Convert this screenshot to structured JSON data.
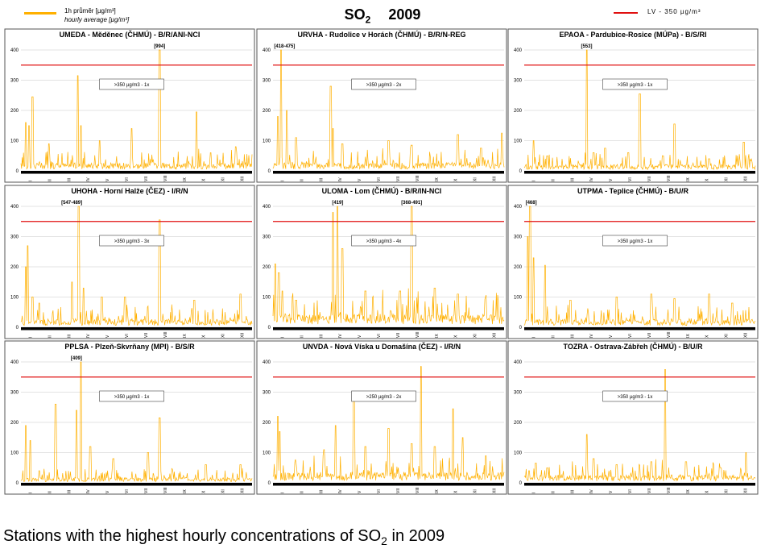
{
  "header": {
    "legend_hourly_cz": "1h průměr [µg/m³]",
    "legend_hourly_en": "hourly average [µg/m³]",
    "title_species": "SO",
    "title_subscript": "2",
    "title_year": "2009",
    "legend_limit": "LV  - 350 µg/m³",
    "hourly_color": "#ffb000",
    "limit_color": "#e01010"
  },
  "caption": {
    "text_before": "Stations with the highest hourly concentrations of SO",
    "subscript": "2",
    "text_after": " in 2009"
  },
  "chart_data": [
    {
      "type": "line",
      "title": "UMEDA - Měděnec (ČHMÚ) - B/R/ANI-NCI",
      "ylim": [
        0,
        400
      ],
      "yticks": [
        "0",
        "100",
        "200",
        "300",
        "400"
      ],
      "categories": [
        "I",
        "II",
        "III",
        "IV",
        "V",
        "VI",
        "VII",
        "VIII",
        "IX",
        "X",
        "XI",
        "XII"
      ],
      "limit_value": 350,
      "exceedance_note": ">350 µg/m3 - 1x",
      "peaks": [
        {
          "x": 0.02,
          "y": 160
        },
        {
          "x": 0.035,
          "y": 150
        },
        {
          "x": 0.05,
          "y": 245
        },
        {
          "x": 0.12,
          "y": 90
        },
        {
          "x": 0.245,
          "y": 315
        },
        {
          "x": 0.26,
          "y": 150
        },
        {
          "x": 0.34,
          "y": 100
        },
        {
          "x": 0.48,
          "y": 140
        },
        {
          "x": 0.6,
          "y": 400
        },
        {
          "x": 0.76,
          "y": 195
        },
        {
          "x": 0.82,
          "y": 60
        },
        {
          "x": 0.93,
          "y": 80
        }
      ],
      "peak_labels": [
        {
          "x": 0.6,
          "text": "[994]"
        }
      ],
      "base": 15
    },
    {
      "type": "line",
      "title": "URVHA - Rudolice v Horách (ČHMÚ) - B/R/N-REG",
      "ylim": [
        0,
        400
      ],
      "yticks": [
        "0",
        "100",
        "200",
        "300",
        "400"
      ],
      "categories": [
        "I",
        "II",
        "III",
        "IV",
        "V",
        "VI",
        "VII",
        "VIII",
        "IX",
        "X",
        "XI",
        "XII"
      ],
      "limit_value": 350,
      "exceedance_note": ">350 µg/m3 - 2x",
      "peaks": [
        {
          "x": 0.02,
          "y": 180
        },
        {
          "x": 0.035,
          "y": 400
        },
        {
          "x": 0.06,
          "y": 200
        },
        {
          "x": 0.1,
          "y": 110
        },
        {
          "x": 0.25,
          "y": 280
        },
        {
          "x": 0.26,
          "y": 140
        },
        {
          "x": 0.3,
          "y": 90
        },
        {
          "x": 0.5,
          "y": 100
        },
        {
          "x": 0.6,
          "y": 85
        },
        {
          "x": 0.8,
          "y": 120
        },
        {
          "x": 0.9,
          "y": 75
        },
        {
          "x": 0.99,
          "y": 125
        }
      ],
      "peak_labels": [
        {
          "x": 0.05,
          "text": "[418-475]"
        }
      ],
      "base": 15
    },
    {
      "type": "line",
      "title": "EPAOA - Pardubice-Rosice (MÚPa) - B/S/RI",
      "ylim": [
        0,
        400
      ],
      "yticks": [
        "0",
        "100",
        "200",
        "300",
        "400"
      ],
      "categories": [
        "I",
        "II",
        "III",
        "IV",
        "V",
        "VI",
        "VII",
        "VIII",
        "IX",
        "X",
        "XI",
        "XII"
      ],
      "limit_value": 350,
      "exceedance_note": ">350 µg/m3 - 1x",
      "peaks": [
        {
          "x": 0.04,
          "y": 100
        },
        {
          "x": 0.1,
          "y": 50
        },
        {
          "x": 0.27,
          "y": 400
        },
        {
          "x": 0.3,
          "y": 60
        },
        {
          "x": 0.35,
          "y": 75
        },
        {
          "x": 0.45,
          "y": 60
        },
        {
          "x": 0.5,
          "y": 255
        },
        {
          "x": 0.6,
          "y": 50
        },
        {
          "x": 0.65,
          "y": 155
        },
        {
          "x": 0.8,
          "y": 40
        },
        {
          "x": 0.95,
          "y": 95
        }
      ],
      "peak_labels": [
        {
          "x": 0.27,
          "text": "[553]"
        }
      ],
      "base": 12
    },
    {
      "type": "line",
      "title": "UHOHA - Horní Halže (ČEZ) - I/R/N",
      "ylim": [
        0,
        400
      ],
      "yticks": [
        "0",
        "100",
        "200",
        "300",
        "400"
      ],
      "categories": [
        "I",
        "II",
        "III",
        "IV",
        "V",
        "VI",
        "VII",
        "VIII",
        "IX",
        "X",
        "XI",
        "XII"
      ],
      "limit_value": 350,
      "exceedance_note": ">350 µg/m3 - 3x",
      "peaks": [
        {
          "x": 0.02,
          "y": 200
        },
        {
          "x": 0.03,
          "y": 270
        },
        {
          "x": 0.05,
          "y": 100
        },
        {
          "x": 0.08,
          "y": 80
        },
        {
          "x": 0.22,
          "y": 150
        },
        {
          "x": 0.25,
          "y": 400
        },
        {
          "x": 0.27,
          "y": 130
        },
        {
          "x": 0.35,
          "y": 100
        },
        {
          "x": 0.45,
          "y": 100
        },
        {
          "x": 0.6,
          "y": 355
        },
        {
          "x": 0.75,
          "y": 90
        },
        {
          "x": 0.95,
          "y": 110
        }
      ],
      "peak_labels": [
        {
          "x": 0.22,
          "text": "[547-489]"
        }
      ],
      "base": 15
    },
    {
      "type": "line",
      "title": "ULOMA - Lom (ČHMÚ) - B/R/IN-NCI",
      "ylim": [
        0,
        400
      ],
      "yticks": [
        "0",
        "100",
        "200",
        "300",
        "400"
      ],
      "categories": [
        "I",
        "II",
        "III",
        "IV",
        "V",
        "VI",
        "VII",
        "VIII",
        "IX",
        "X",
        "XI",
        "XII"
      ],
      "limit_value": 350,
      "exceedance_note": ">350 µg/m3 - 4x",
      "peaks": [
        {
          "x": 0.01,
          "y": 210
        },
        {
          "x": 0.025,
          "y": 180
        },
        {
          "x": 0.04,
          "y": 120
        },
        {
          "x": 0.1,
          "y": 90
        },
        {
          "x": 0.26,
          "y": 380
        },
        {
          "x": 0.28,
          "y": 400
        },
        {
          "x": 0.3,
          "y": 260
        },
        {
          "x": 0.4,
          "y": 120
        },
        {
          "x": 0.55,
          "y": 120
        },
        {
          "x": 0.6,
          "y": 400
        },
        {
          "x": 0.7,
          "y": 130
        },
        {
          "x": 0.8,
          "y": 110
        },
        {
          "x": 0.92,
          "y": 100
        }
      ],
      "peak_labels": [
        {
          "x": 0.28,
          "text": "[419]"
        },
        {
          "x": 0.6,
          "text": "[368-491]"
        }
      ],
      "base": 25
    },
    {
      "type": "line",
      "title": "UTPMA - Teplice (ČHMÚ) - B/U/R",
      "ylim": [
        0,
        400
      ],
      "yticks": [
        "0",
        "100",
        "200",
        "300",
        "400"
      ],
      "categories": [
        "I",
        "II",
        "III",
        "IV",
        "V",
        "VI",
        "VII",
        "VIII",
        "IX",
        "X",
        "XI",
        "XII"
      ],
      "limit_value": 350,
      "exceedance_note": ">350 µg/m3 - 1x",
      "peaks": [
        {
          "x": 0.015,
          "y": 300
        },
        {
          "x": 0.025,
          "y": 400
        },
        {
          "x": 0.04,
          "y": 230
        },
        {
          "x": 0.09,
          "y": 205
        },
        {
          "x": 0.2,
          "y": 90
        },
        {
          "x": 0.4,
          "y": 100
        },
        {
          "x": 0.55,
          "y": 110
        },
        {
          "x": 0.65,
          "y": 95
        },
        {
          "x": 0.8,
          "y": 110
        },
        {
          "x": 0.9,
          "y": 80
        }
      ],
      "peak_labels": [
        {
          "x": 0.03,
          "text": "[468]"
        }
      ],
      "base": 15
    },
    {
      "type": "line",
      "title": "PPLSA - Plzeň-Skvrňany (MPI) - B/S/R",
      "ylim": [
        0,
        400
      ],
      "yticks": [
        "0",
        "100",
        "200",
        "300",
        "400"
      ],
      "categories": [
        "I",
        "II",
        "III",
        "IV",
        "V",
        "VI",
        "VII",
        "VIII",
        "IX",
        "X",
        "XI",
        "XII"
      ],
      "limit_value": 350,
      "exceedance_note": ">350 µg/m3 - 1x",
      "peaks": [
        {
          "x": 0.02,
          "y": 190
        },
        {
          "x": 0.04,
          "y": 140
        },
        {
          "x": 0.08,
          "y": 40
        },
        {
          "x": 0.15,
          "y": 260
        },
        {
          "x": 0.24,
          "y": 240
        },
        {
          "x": 0.26,
          "y": 400
        },
        {
          "x": 0.3,
          "y": 120
        },
        {
          "x": 0.4,
          "y": 80
        },
        {
          "x": 0.55,
          "y": 100
        },
        {
          "x": 0.6,
          "y": 215
        },
        {
          "x": 0.8,
          "y": 60
        },
        {
          "x": 0.95,
          "y": 60
        }
      ],
      "peak_labels": [
        {
          "x": 0.24,
          "text": "[409]"
        }
      ],
      "base": 10
    },
    {
      "type": "line",
      "title": "UNVDA - Nová Víska u Domašína (ČEZ) - I/R/N",
      "ylim": [
        0,
        400
      ],
      "yticks": [
        "0",
        "100",
        "200",
        "300",
        "400"
      ],
      "categories": [
        "I",
        "II",
        "III",
        "IV",
        "V",
        "VI",
        "VII",
        "VIII",
        "IX",
        "X",
        "XI",
        "XII"
      ],
      "limit_value": 350,
      "exceedance_note": ">250 µg/m3 - 2x",
      "peaks": [
        {
          "x": 0.02,
          "y": 220
        },
        {
          "x": 0.03,
          "y": 170
        },
        {
          "x": 0.22,
          "y": 110
        },
        {
          "x": 0.27,
          "y": 190
        },
        {
          "x": 0.35,
          "y": 300
        },
        {
          "x": 0.4,
          "y": 120
        },
        {
          "x": 0.5,
          "y": 180
        },
        {
          "x": 0.6,
          "y": 130
        },
        {
          "x": 0.64,
          "y": 385
        },
        {
          "x": 0.7,
          "y": 120
        },
        {
          "x": 0.78,
          "y": 245
        },
        {
          "x": 0.82,
          "y": 150
        },
        {
          "x": 0.92,
          "y": 90
        }
      ],
      "peak_labels": [],
      "base": 20
    },
    {
      "type": "line",
      "title": "TOZRA - Ostrava-Zábřeh (ČHMÚ) - B/U/R",
      "ylim": [
        0,
        400
      ],
      "yticks": [
        "0",
        "100",
        "200",
        "300",
        "400"
      ],
      "categories": [
        "I",
        "II",
        "III",
        "IV",
        "V",
        "VI",
        "VII",
        "VIII",
        "IX",
        "X",
        "XI",
        "XII"
      ],
      "limit_value": 350,
      "exceedance_note": ">350 µg/m3 - 1x",
      "peaks": [
        {
          "x": 0.02,
          "y": 40
        },
        {
          "x": 0.05,
          "y": 65
        },
        {
          "x": 0.1,
          "y": 50
        },
        {
          "x": 0.27,
          "y": 160
        },
        {
          "x": 0.3,
          "y": 80
        },
        {
          "x": 0.4,
          "y": 60
        },
        {
          "x": 0.55,
          "y": 70
        },
        {
          "x": 0.61,
          "y": 375
        },
        {
          "x": 0.7,
          "y": 70
        },
        {
          "x": 0.85,
          "y": 50
        },
        {
          "x": 0.96,
          "y": 100
        }
      ],
      "peak_labels": [],
      "base": 15
    }
  ]
}
